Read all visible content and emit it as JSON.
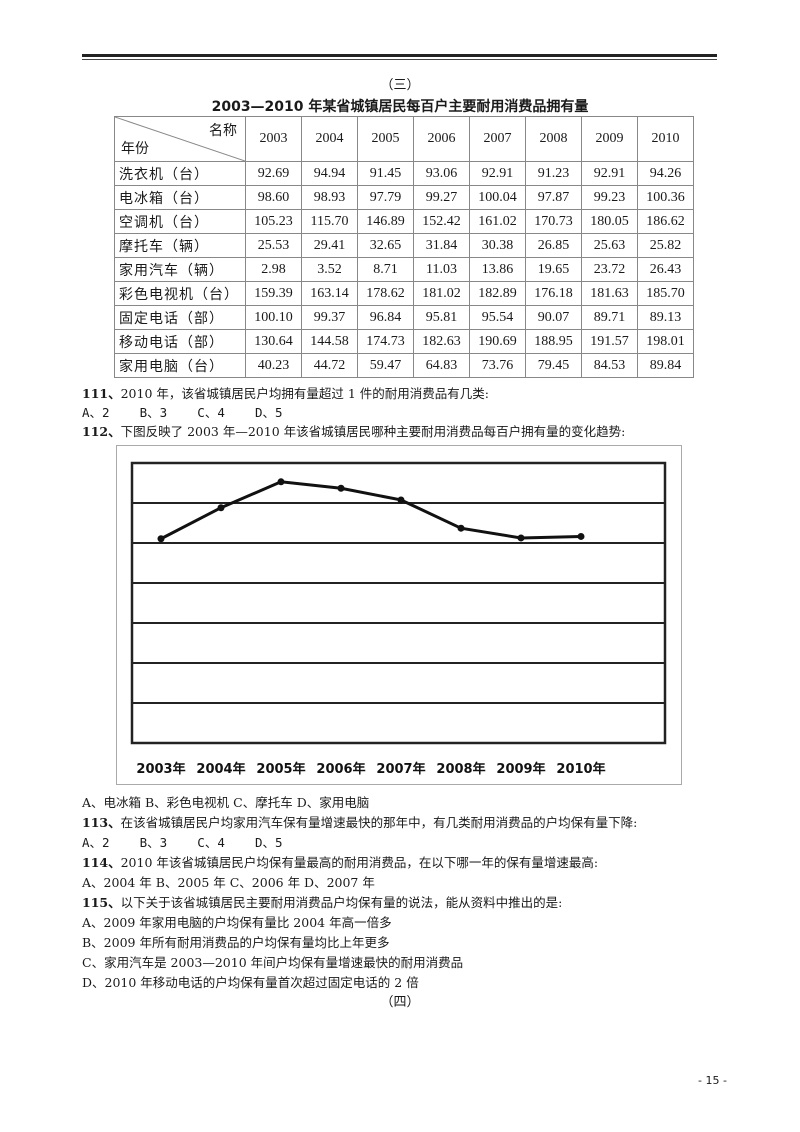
{
  "section_top": "（三）",
  "table": {
    "title": "2003—2010 年某省城镇居民每百户主要耐用消费品拥有量",
    "corner_top": "名称",
    "corner_bottom": "年份",
    "years": [
      "2003",
      "2004",
      "2005",
      "2006",
      "2007",
      "2008",
      "2009",
      "2010"
    ],
    "rows": [
      {
        "name": "洗衣机（台）",
        "values": [
          "92.69",
          "94.94",
          "91.45",
          "93.06",
          "92.91",
          "91.23",
          "92.91",
          "94.26"
        ]
      },
      {
        "name": "电冰箱（台）",
        "values": [
          "98.60",
          "98.93",
          "97.79",
          "99.27",
          "100.04",
          "97.87",
          "99.23",
          "100.36"
        ]
      },
      {
        "name": "空调机（台）",
        "values": [
          "105.23",
          "115.70",
          "146.89",
          "152.42",
          "161.02",
          "170.73",
          "180.05",
          "186.62"
        ]
      },
      {
        "name": "摩托车（辆）",
        "values": [
          "25.53",
          "29.41",
          "32.65",
          "31.84",
          "30.38",
          "26.85",
          "25.63",
          "25.82"
        ]
      },
      {
        "name": "家用汽车（辆）",
        "values": [
          "2.98",
          "3.52",
          "8.71",
          "11.03",
          "13.86",
          "19.65",
          "23.72",
          "26.43"
        ]
      },
      {
        "name": "彩色电视机（台）",
        "values": [
          "159.39",
          "163.14",
          "178.62",
          "181.02",
          "182.89",
          "176.18",
          "181.63",
          "185.70"
        ]
      },
      {
        "name": "固定电话（部）",
        "values": [
          "100.10",
          "99.37",
          "96.84",
          "95.81",
          "95.54",
          "90.07",
          "89.71",
          "89.13"
        ]
      },
      {
        "name": "移动电话（部）",
        "values": [
          "130.64",
          "144.58",
          "174.73",
          "182.63",
          "190.69",
          "188.95",
          "191.57",
          "198.01"
        ]
      },
      {
        "name": "家用电脑（台）",
        "values": [
          "40.23",
          "44.72",
          "59.47",
          "64.83",
          "73.76",
          "79.45",
          "84.53",
          "89.84"
        ]
      }
    ]
  },
  "questions": {
    "q111": {
      "num": "111、",
      "text": "2010 年，该省城镇居民户均拥有量超过 1 件的耐用消费品有几类:",
      "options": "A、2    B、3    C、4    D、5"
    },
    "q112": {
      "num": "112、",
      "text": "下图反映了 2003 年—2010 年该省城镇居民哪种主要耐用消费品每百户拥有量的变化趋势:",
      "options": "A、电冰箱      B、彩色电视机      C、摩托车      D、家用电脑"
    },
    "q113": {
      "num": "113、",
      "text": "在该省城镇居民户均家用汽车保有量增速最快的那年中，有几类耐用消费品的户均保有量下降:",
      "options": "A、2    B、3    C、4    D、5"
    },
    "q114": {
      "num": "114、",
      "text": "2010 年该省城镇居民户均保有量最高的耐用消费品，在以下哪一年的保有量增速最高:",
      "options": "A、2004 年      B、2005 年      C、2006 年      D、2007 年"
    },
    "q115": {
      "num": "115、",
      "text": "以下关于该省城镇居民主要耐用消费品户均保有量的说法，能从资料中推出的是:",
      "option_a": "A、2009 年家用电脑的户均保有量比 2004 年高一倍多",
      "option_b": "B、2009 年所有耐用消费品的户均保有量均比上年更多",
      "option_c": "C、家用汽车是 2003—2010 年间户均保有量增速最快的耐用消费品",
      "option_d": "D、2010 年移动电话的户均保有量首次超过固定电话的 2 倍"
    }
  },
  "section_bottom": "（四）",
  "page_number": "- 15 -",
  "chart_data": {
    "type": "line",
    "title": "",
    "xlabel": "",
    "ylabel": "",
    "categories": [
      "2003年",
      "2004年",
      "2005年",
      "2006年",
      "2007年",
      "2008年",
      "2009年",
      "2010年"
    ],
    "values": [
      25.53,
      29.41,
      32.65,
      31.84,
      30.38,
      26.85,
      25.63,
      25.82
    ],
    "ylim": [
      0,
      35
    ],
    "y_tick_labels_shown": false,
    "grid": true,
    "gridline_count": 7,
    "legend": "none",
    "line_color": "#111111",
    "marker": "circle"
  }
}
